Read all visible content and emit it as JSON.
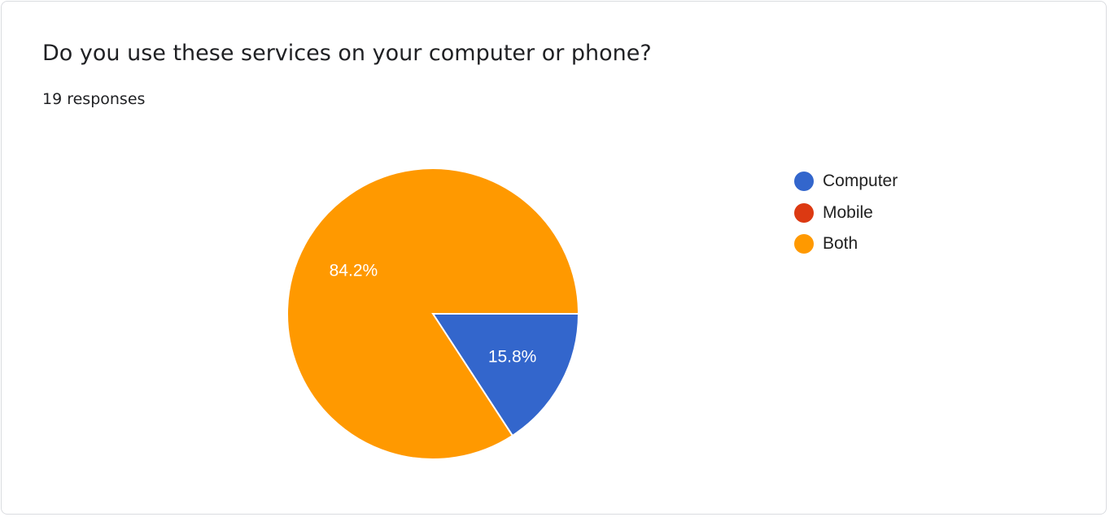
{
  "card": {
    "title": "Do you use these services on your computer or phone?",
    "response_count": "19 responses"
  },
  "chart_data": {
    "type": "pie",
    "categories": [
      "Computer",
      "Mobile",
      "Both"
    ],
    "values": [
      15.8,
      0,
      84.2
    ],
    "data_labels": [
      "15.8%",
      "",
      "84.2%"
    ],
    "colors": [
      "#3366cc",
      "#dc3912",
      "#ff9900"
    ],
    "legend_position": "right"
  }
}
